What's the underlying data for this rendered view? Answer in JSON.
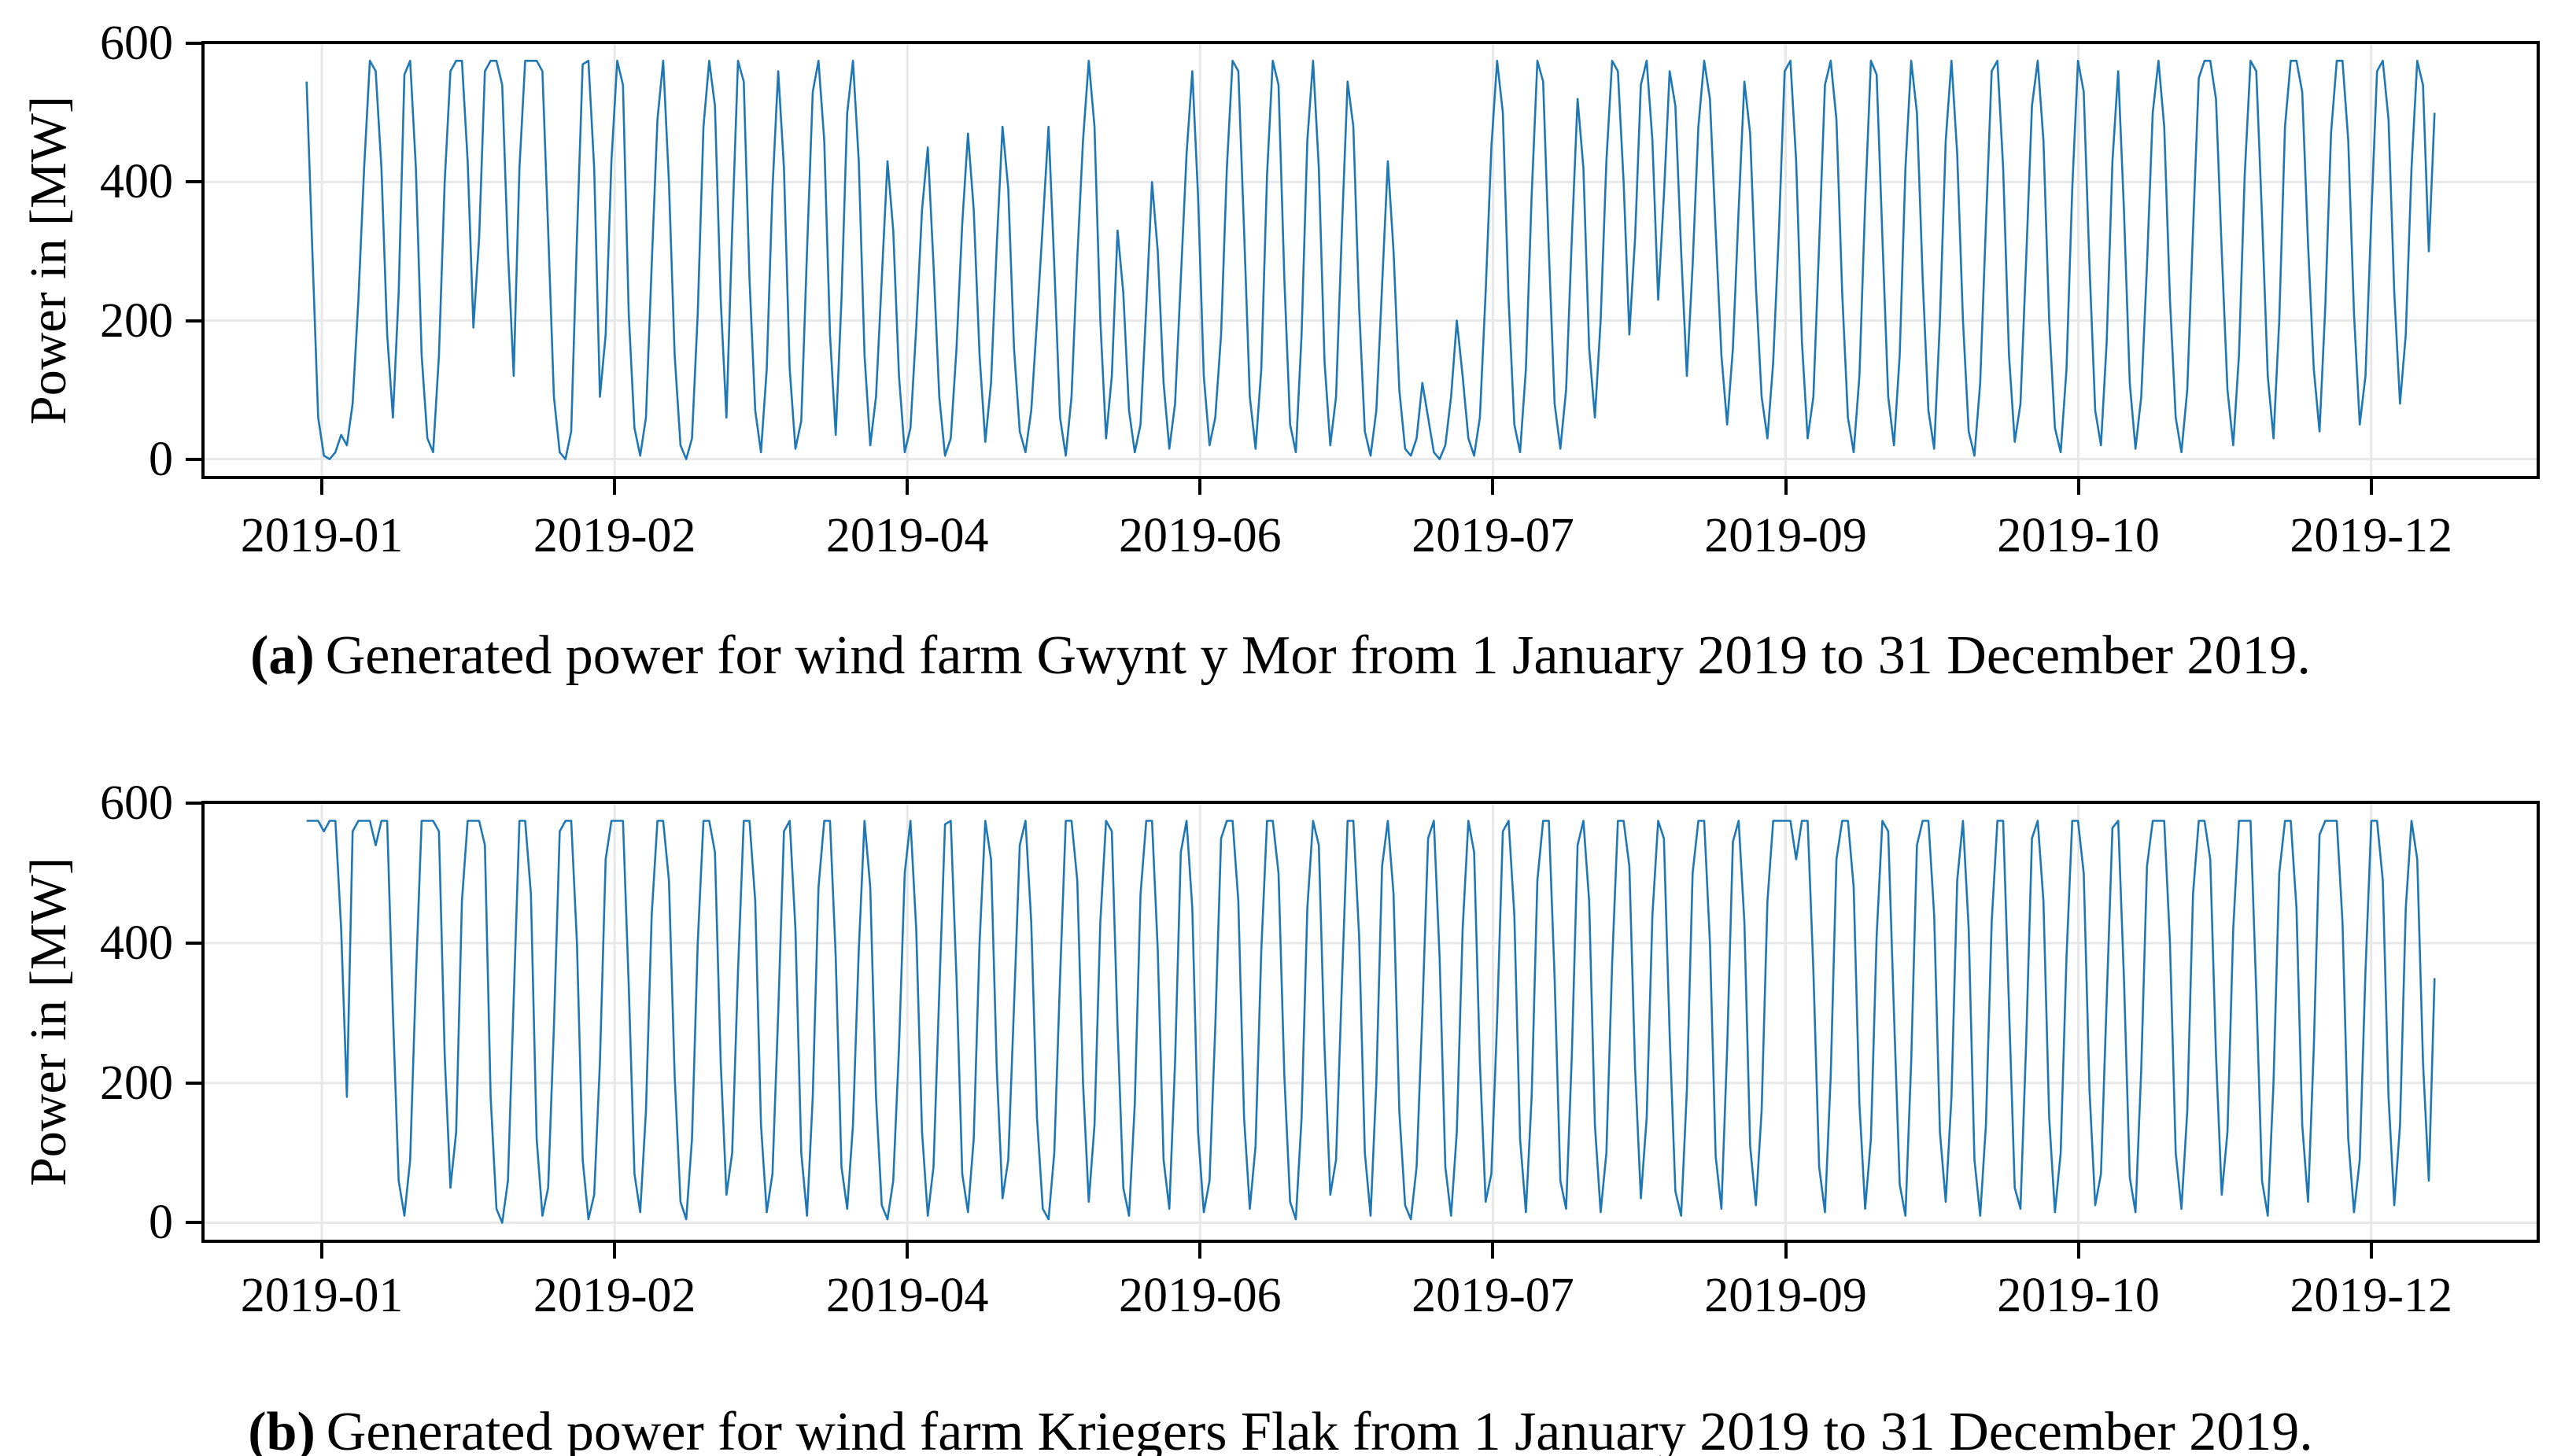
{
  "figure": {
    "panels": [
      {
        "id": "a",
        "label": "(a)",
        "caption": "Generated power for wind farm Gwynt y Mor from 1 January 2019 to 31 December 2019.",
        "ylabel": "Power in [MW]"
      },
      {
        "id": "b",
        "label": "(b)",
        "caption": "Generated power for wind farm Kriegers Flak from 1 January 2019 to 31 December 2019.",
        "ylabel": "Power in [MW]"
      }
    ],
    "colors": {
      "line": "#1f77b4",
      "grid": "#e8e8e8",
      "frame": "#000000",
      "background": "#ffffff"
    }
  },
  "chart_data": [
    {
      "type": "line",
      "title": "",
      "xlabel": "",
      "ylabel": "Power in [MW]",
      "x_range": "2019-01-01 to 2019-12-31",
      "x_tick_labels": [
        "2019-01",
        "2019-02",
        "2019-04",
        "2019-06",
        "2019-07",
        "2019-09",
        "2019-10",
        "2019-12"
      ],
      "y_ticks": [
        0,
        200,
        400,
        600
      ],
      "ylim": [
        -28.75,
        603.75
      ],
      "grid": true,
      "legend": "none",
      "series": [
        {
          "name": "Gwynt y Mor generated power [MW] (dense hourly trace, approximate values read from plot; capacity cap ~575 MW)",
          "values": [
            545,
            300,
            60,
            5,
            0,
            10,
            35,
            20,
            80,
            230,
            420,
            575,
            560,
            420,
            180,
            60,
            240,
            555,
            575,
            420,
            150,
            30,
            10,
            150,
            400,
            560,
            575,
            575,
            430,
            190,
            320,
            560,
            575,
            575,
            540,
            300,
            120,
            420,
            575,
            575,
            575,
            560,
            330,
            90,
            10,
            0,
            40,
            320,
            570,
            575,
            420,
            90,
            180,
            430,
            575,
            540,
            210,
            45,
            5,
            60,
            280,
            490,
            575,
            400,
            150,
            20,
            0,
            30,
            210,
            480,
            575,
            510,
            230,
            60,
            330,
            575,
            545,
            260,
            70,
            10,
            130,
            390,
            560,
            420,
            130,
            15,
            55,
            300,
            530,
            575,
            460,
            180,
            35,
            230,
            500,
            575,
            430,
            150,
            20,
            90,
            260,
            430,
            330,
            120,
            10,
            45,
            190,
            360,
            450,
            280,
            90,
            5,
            30,
            160,
            340,
            470,
            360,
            150,
            25,
            110,
            310,
            480,
            390,
            160,
            40,
            10,
            70,
            200,
            340,
            480,
            280,
            60,
            5,
            90,
            290,
            460,
            575,
            480,
            200,
            30,
            120,
            330,
            240,
            70,
            10,
            50,
            220,
            400,
            300,
            110,
            15,
            80,
            260,
            440,
            560,
            380,
            120,
            20,
            60,
            180,
            420,
            575,
            560,
            330,
            90,
            15,
            130,
            410,
            575,
            540,
            260,
            50,
            10,
            180,
            460,
            575,
            420,
            140,
            20,
            90,
            330,
            545,
            480,
            220,
            40,
            5,
            70,
            250,
            430,
            300,
            100,
            15,
            5,
            30,
            110,
            60,
            10,
            0,
            20,
            90,
            200,
            120,
            30,
            5,
            60,
            240,
            450,
            575,
            500,
            230,
            50,
            10,
            130,
            380,
            575,
            545,
            300,
            80,
            15,
            100,
            320,
            520,
            420,
            160,
            60,
            200,
            430,
            575,
            560,
            400,
            180,
            320,
            540,
            575,
            460,
            230,
            380,
            560,
            510,
            300,
            120,
            280,
            480,
            575,
            520,
            330,
            150,
            50,
            160,
            360,
            545,
            470,
            250,
            90,
            30,
            140,
            330,
            560,
            575,
            430,
            170,
            30,
            90,
            310,
            540,
            575,
            490,
            240,
            60,
            10,
            120,
            370,
            575,
            555,
            320,
            90,
            20,
            150,
            420,
            575,
            500,
            260,
            70,
            15,
            200,
            460,
            575,
            440,
            200,
            40,
            5,
            110,
            340,
            560,
            575,
            420,
            150,
            25,
            80,
            290,
            510,
            575,
            460,
            200,
            45,
            10,
            130,
            390,
            575,
            530,
            280,
            70,
            20,
            170,
            430,
            560,
            360,
            110,
            15,
            90,
            280,
            500,
            575,
            480,
            230,
            60,
            10,
            100,
            330,
            550,
            575,
            575,
            520,
            300,
            100,
            20,
            150,
            410,
            575,
            560,
            350,
            120,
            30,
            200,
            480,
            575,
            575,
            530,
            310,
            130,
            40,
            220,
            470,
            575,
            575,
            460,
            210,
            50,
            120,
            350,
            560,
            575,
            490,
            240,
            80,
            180,
            420,
            575,
            540,
            300,
            500
          ]
        }
      ]
    },
    {
      "type": "line",
      "title": "",
      "xlabel": "",
      "ylabel": "Power in [MW]",
      "x_range": "2019-01-01 to 2019-12-31",
      "x_tick_labels": [
        "2019-01",
        "2019-02",
        "2019-04",
        "2019-06",
        "2019-07",
        "2019-09",
        "2019-10",
        "2019-12"
      ],
      "y_ticks": [
        0,
        200,
        400,
        600
      ],
      "ylim": [
        -28.75,
        603.75
      ],
      "grid": true,
      "legend": "none",
      "series": [
        {
          "name": "Kriegers Flak generated power [MW] (dense hourly trace, approximate values read from plot; capacity cap ~575 MW)",
          "values": [
            575,
            575,
            575,
            560,
            575,
            575,
            420,
            180,
            560,
            575,
            575,
            575,
            540,
            575,
            575,
            300,
            60,
            10,
            90,
            350,
            575,
            575,
            575,
            560,
            240,
            50,
            130,
            460,
            575,
            575,
            575,
            540,
            180,
            20,
            0,
            60,
            320,
            575,
            575,
            470,
            120,
            10,
            50,
            280,
            560,
            575,
            575,
            400,
            90,
            5,
            40,
            230,
            520,
            575,
            575,
            575,
            340,
            70,
            15,
            160,
            440,
            575,
            575,
            490,
            210,
            30,
            5,
            120,
            400,
            575,
            575,
            530,
            230,
            40,
            100,
            360,
            575,
            575,
            460,
            140,
            15,
            70,
            300,
            560,
            575,
            420,
            100,
            10,
            180,
            480,
            575,
            575,
            380,
            80,
            20,
            140,
            390,
            575,
            480,
            180,
            25,
            5,
            60,
            250,
            500,
            575,
            420,
            130,
            10,
            80,
            330,
            570,
            575,
            350,
            70,
            15,
            120,
            400,
            575,
            520,
            220,
            35,
            90,
            310,
            540,
            575,
            430,
            150,
            20,
            5,
            100,
            350,
            575,
            575,
            490,
            200,
            30,
            140,
            430,
            575,
            560,
            280,
            50,
            10,
            170,
            470,
            575,
            575,
            390,
            90,
            20,
            230,
            530,
            575,
            450,
            130,
            15,
            60,
            280,
            550,
            575,
            575,
            460,
            150,
            20,
            110,
            390,
            575,
            575,
            500,
            210,
            30,
            5,
            150,
            450,
            575,
            540,
            250,
            40,
            90,
            340,
            575,
            575,
            410,
            100,
            10,
            200,
            510,
            575,
            470,
            160,
            25,
            5,
            80,
            300,
            550,
            575,
            380,
            80,
            10,
            130,
            420,
            575,
            530,
            230,
            30,
            70,
            290,
            560,
            575,
            440,
            120,
            15,
            180,
            490,
            575,
            575,
            350,
            60,
            20,
            240,
            540,
            575,
            460,
            140,
            15,
            100,
            370,
            575,
            575,
            510,
            220,
            35,
            150,
            440,
            575,
            550,
            270,
            45,
            10,
            190,
            500,
            575,
            575,
            400,
            95,
            20,
            250,
            545,
            575,
            430,
            110,
            25,
            160,
            460,
            575,
            575,
            575,
            575,
            520,
            575,
            575,
            360,
            80,
            15,
            210,
            520,
            575,
            575,
            480,
            170,
            20,
            120,
            410,
            575,
            560,
            300,
            55,
            10,
            230,
            540,
            575,
            575,
            440,
            130,
            30,
            180,
            490,
            575,
            420,
            90,
            10,
            140,
            430,
            575,
            575,
            310,
            50,
            20,
            260,
            550,
            575,
            460,
            150,
            15,
            100,
            380,
            575,
            575,
            500,
            190,
            25,
            70,
            320,
            565,
            575,
            350,
            65,
            15,
            220,
            510,
            575,
            575,
            575,
            400,
            100,
            20,
            160,
            470,
            575,
            575,
            520,
            240,
            40,
            130,
            420,
            575,
            575,
            575,
            330,
            60,
            10,
            200,
            500,
            575,
            575,
            450,
            140,
            30,
            250,
            555,
            575,
            575,
            575,
            430,
            120,
            15,
            90,
            360,
            575,
            575,
            490,
            180,
            25,
            140,
            450,
            575,
            520,
            230,
            60,
            350
          ]
        }
      ]
    }
  ]
}
